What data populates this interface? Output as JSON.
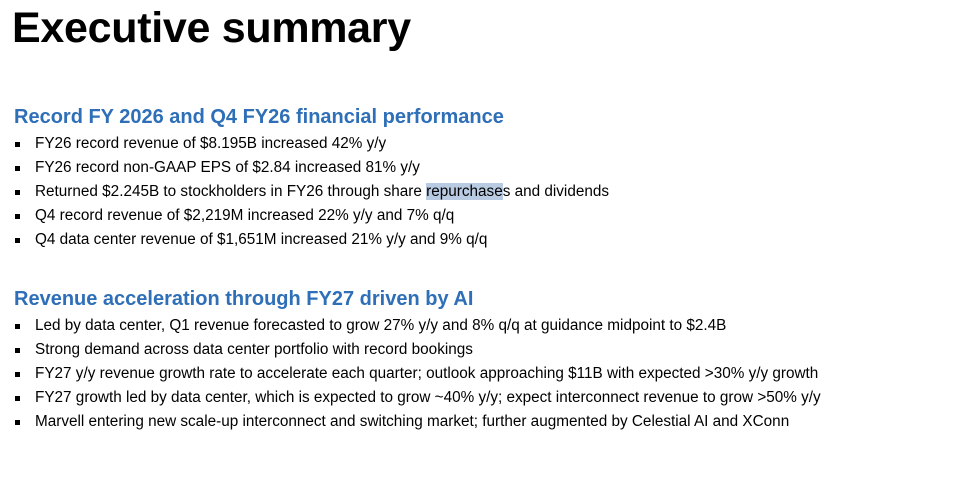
{
  "page": {
    "title": "Executive summary",
    "accent_color": "#2e6fb8",
    "highlight_color": "#b9cbe3"
  },
  "sections": [
    {
      "heading": "Record FY 2026 and Q4 FY26 financial performance",
      "bullets": [
        {
          "text": "FY26 record revenue of $8.195B increased 42% y/y"
        },
        {
          "text": "FY26 record non-GAAP EPS of $2.84 increased 81% y/y"
        },
        {
          "before": "Returned $2.245B to stockholders in FY26 through share ",
          "highlighted": "repurchase",
          "after": "s and dividends"
        },
        {
          "text": "Q4 record revenue of $2,219M increased 22% y/y and 7% q/q"
        },
        {
          "text": "Q4 data center revenue of $1,651M increased 21% y/y and 9% q/q"
        }
      ]
    },
    {
      "heading": "Revenue acceleration through FY27 driven by AI",
      "bullets": [
        {
          "text": "Led by data center, Q1 revenue forecasted to grow 27% y/y and 8% q/q at guidance midpoint to $2.4B"
        },
        {
          "text": "Strong demand across data center portfolio with record bookings"
        },
        {
          "text": "FY27 y/y revenue growth rate to accelerate each quarter; outlook approaching $11B with expected >30% y/y growth"
        },
        {
          "text": "FY27 growth led by data center, which is expected to grow ~40% y/y; expect interconnect revenue to grow >50% y/y"
        },
        {
          "text": "Marvell entering new scale-up interconnect and switching market; further augmented by Celestial AI and XConn"
        }
      ]
    }
  ]
}
